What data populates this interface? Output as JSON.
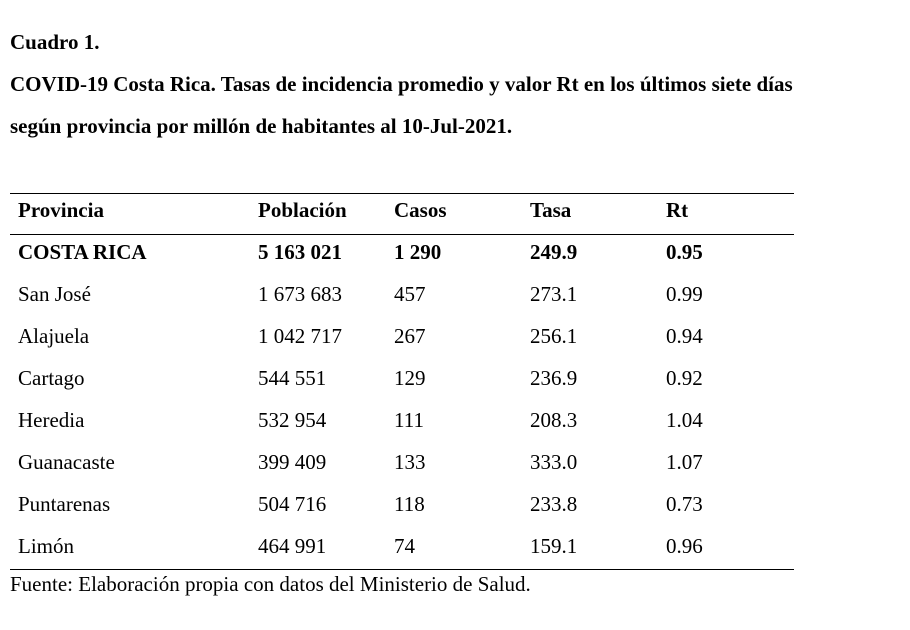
{
  "caption": {
    "number": "Cuadro 1.",
    "title_line1": "COVID-19 Costa Rica. Tasas de incidencia promedio y valor Rt en los últimos siete días",
    "title_line2": "según provincia por millón de habitantes al 10-Jul-2021."
  },
  "table": {
    "headers": [
      "Provincia",
      "Población",
      "Casos",
      "Tasa",
      "Rt"
    ],
    "rows": [
      [
        "COSTA RICA",
        "5 163 021",
        "1 290",
        "249.9",
        "0.95"
      ],
      [
        "San José",
        "1 673 683",
        "457",
        "273.1",
        "0.99"
      ],
      [
        "Alajuela",
        "1 042 717",
        "267",
        "256.1",
        "0.94"
      ],
      [
        "Cartago",
        "544 551",
        "129",
        "236.9",
        "0.92"
      ],
      [
        "Heredia",
        "532 954",
        "111",
        "208.3",
        "1.04"
      ],
      [
        "Guanacaste",
        "399 409",
        "133",
        "333.0",
        "1.07"
      ],
      [
        "Puntarenas",
        "504 716",
        "118",
        "233.8",
        "0.73"
      ],
      [
        "Limón",
        "464 991",
        "74",
        "159.1",
        "0.96"
      ]
    ]
  },
  "source": "Fuente: Elaboración propia con datos del Ministerio de Salud."
}
